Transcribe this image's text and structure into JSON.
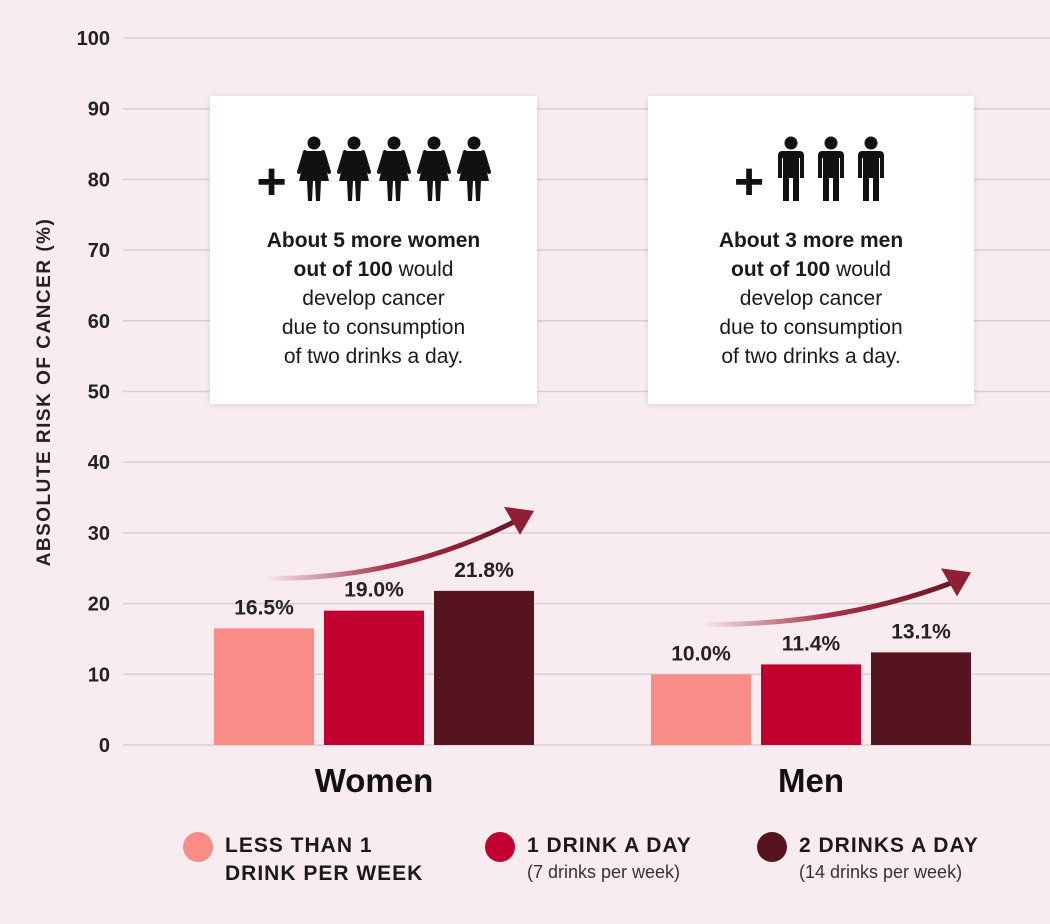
{
  "chart_data": {
    "type": "bar",
    "ylabel": "ABSOLUTE RISK OF CANCER (%)",
    "ylim": [
      0,
      100
    ],
    "yticks": [
      0,
      10,
      20,
      30,
      40,
      50,
      60,
      70,
      80,
      90,
      100
    ],
    "grid": true,
    "categories": [
      "Women",
      "Men"
    ],
    "series": [
      {
        "name": "LESS THAN 1 DRINK PER WEEK",
        "color": "#fa8c87",
        "values": [
          16.5,
          10.0
        ],
        "labels": [
          "16.5%",
          "10.0%"
        ]
      },
      {
        "name": "1 DRINK A DAY",
        "color": "#c20030",
        "values": [
          19.0,
          11.4
        ],
        "labels": [
          "19.0%",
          "11.4%"
        ]
      },
      {
        "name": "2 DRINKS A DAY",
        "color": "#561421",
        "values": [
          21.8,
          13.1
        ],
        "labels": [
          "21.8%",
          "13.1%"
        ]
      }
    ],
    "trend_arrow_color": "#8e1f35"
  },
  "callouts": [
    {
      "id": "women",
      "plus": "+",
      "icon": "woman-icon",
      "icon_count": 5,
      "bold_lines": [
        "About 5 more women",
        "out of 100"
      ],
      "bold_tail": " would",
      "plain_lines": [
        "develop cancer",
        "due to consumption",
        "of two drinks a day."
      ]
    },
    {
      "id": "men",
      "plus": "+",
      "icon": "man-icon",
      "icon_count": 3,
      "bold_lines": [
        "About 3 more men",
        "out of 100"
      ],
      "bold_tail": " would",
      "plain_lines": [
        "develop cancer",
        "due to consumption",
        "of two drinks a day."
      ]
    }
  ],
  "legend": [
    {
      "main": "LESS THAN 1\nDRINK PER WEEK",
      "sub": "",
      "color": "#fa8c87"
    },
    {
      "main": "1 DRINK A DAY",
      "sub": "(7 drinks per week)",
      "color": "#c20030"
    },
    {
      "main": "2 DRINKS A DAY",
      "sub": "(14 drinks per week)",
      "color": "#561421"
    }
  ]
}
